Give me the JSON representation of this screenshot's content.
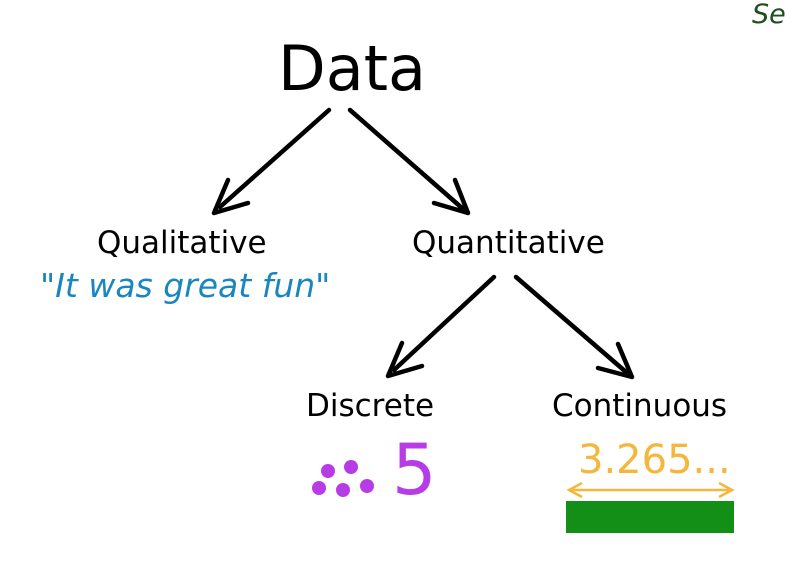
{
  "corner_text": "Se",
  "root": {
    "label": "Data"
  },
  "qualitative": {
    "label": "Qualitative",
    "example": "\"It was great fun\"",
    "example_color": "#1a86c0"
  },
  "quantitative": {
    "label": "Quantitative"
  },
  "discrete": {
    "label": "Discrete",
    "value": "5",
    "dot_count": 5,
    "color": "#b83ce6"
  },
  "continuous": {
    "label": "Continuous",
    "value": "3.265...",
    "color": "#f5b73b",
    "bar_color": "#138f17"
  },
  "arrow_color": "#000000"
}
